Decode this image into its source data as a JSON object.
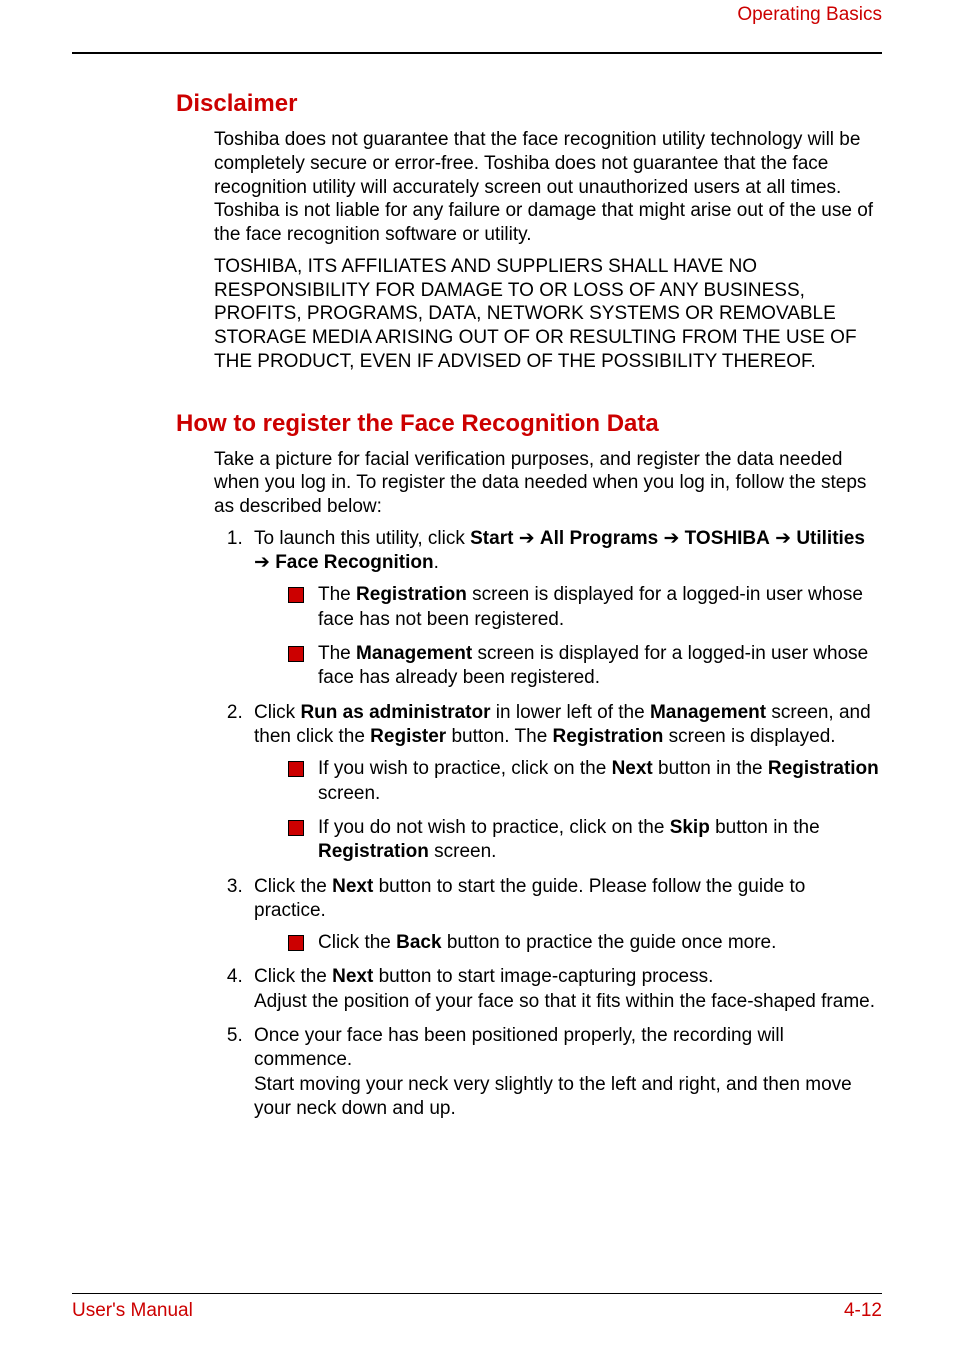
{
  "colors": {
    "accent": "#cc0000",
    "text": "#000000",
    "background": "#ffffff"
  },
  "typography": {
    "body_fontsize_pt": 14,
    "heading_fontsize_pt": 18,
    "font_family": "Arial"
  },
  "header": {
    "section": "Operating Basics"
  },
  "sections": [
    {
      "heading": "Disclaimer",
      "paragraphs": [
        "Toshiba does not guarantee that the face recognition utility technology will be completely secure or error-free. Toshiba does not guarantee that the face recognition utility will accurately screen out unauthorized users at all times. Toshiba is not liable for any failure or damage that might arise out of the use of the face recognition software or utility.",
        "TOSHIBA, ITS AFFILIATES AND SUPPLIERS SHALL HAVE NO RESPONSIBILITY FOR DAMAGE TO OR LOSS OF ANY BUSINESS, PROFITS, PROGRAMS, DATA, NETWORK SYSTEMS OR REMOVABLE STORAGE MEDIA ARISING OUT OF OR RESULTING FROM THE USE OF THE PRODUCT, EVEN IF ADVISED OF THE POSSIBILITY THEREOF."
      ]
    },
    {
      "heading": "How to register the Face Recognition Data",
      "paragraphs": [
        "Take a picture for facial verification purposes, and register the data needed when you log in. To register the data needed when you log in, follow the steps as described below:"
      ]
    }
  ],
  "step1": {
    "prefix": "To launch this utility, click ",
    "start": "Start",
    "arrow": " ➔ ",
    "allprograms": "All Programs",
    "toshiba": "TOSHIBA",
    "utilities": "Utilities",
    "facerec": "Face Recognition",
    "period": ".",
    "bul1a": "The ",
    "bul1b": "Registration",
    "bul1c": " screen is displayed for a logged-in user whose face has not been registered.",
    "bul2a": "The ",
    "bul2b": "Management",
    "bul2c": " screen is displayed for a logged-in user whose face has already been registered."
  },
  "step2": {
    "a": "Click ",
    "b": "Run as administrator",
    "c": " in lower left of the ",
    "d": "Management",
    "e": " screen, and then click the ",
    "f": "Register",
    "g": " button. The ",
    "h": "Registration",
    "i": " screen is displayed.",
    "bul1a": "If you wish to practice, click on the ",
    "bul1b": "Next",
    "bul1c": " button in the ",
    "bul1d": "Registration",
    "bul1e": " screen.",
    "bul2a": "If you do not wish to practice, click on the ",
    "bul2b": "Skip",
    "bul2c": " button in the ",
    "bul2d": "Registration",
    "bul2e": " screen."
  },
  "step3": {
    "a": "Click the ",
    "b": "Next",
    "c": " button to start the guide. Please follow the guide to practice.",
    "bul1a": "Click the ",
    "bul1b": "Back",
    "bul1c": " button to practice the guide once more."
  },
  "step4": {
    "a": "Click the ",
    "b": "Next",
    "c": " button to start image-capturing process.",
    "d": "Adjust the position of your face so that it fits within the face-shaped frame."
  },
  "step5": {
    "a": "Once your face has been positioned properly, the recording will commence.",
    "b": "Start moving your neck very slightly to the left and right, and then move your neck down and up."
  },
  "footer": {
    "left": "User's Manual",
    "right": "4-12"
  }
}
